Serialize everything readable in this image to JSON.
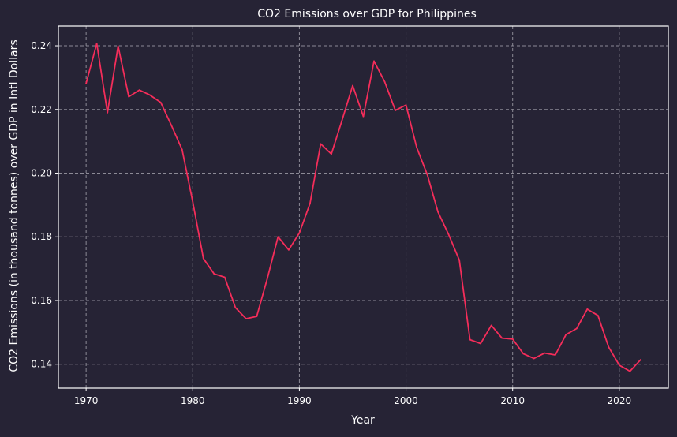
{
  "colors": {
    "background": "#262335",
    "plot_background": "#262335",
    "grid": "#8c8a96",
    "axes": "#ffffff",
    "text": "#ffffff",
    "line": "#f42d5a"
  },
  "chart_data": {
    "type": "line",
    "title": "CO2 Emissions over GDP for Philippines",
    "xlabel": "Year",
    "ylabel": "CO2 Emissions (in thousand tonnes) over GDP in Intl Dollars",
    "xlim": [
      1967.4,
      2024.6
    ],
    "ylim": [
      0.1325,
      0.2462
    ],
    "x_ticks": [
      1970,
      1980,
      1990,
      2000,
      2010,
      2020
    ],
    "y_ticks": [
      0.14,
      0.16,
      0.18,
      0.2,
      0.22,
      0.24
    ],
    "y_tick_labels": [
      "0.14",
      "0.16",
      "0.18",
      "0.20",
      "0.22",
      "0.24"
    ],
    "grid": true,
    "grid_style": "dashed",
    "legend": false,
    "series": [
      {
        "x": [
          1970,
          1971,
          1972,
          1973,
          1974,
          1975,
          1976,
          1977,
          1978,
          1979,
          1980,
          1981,
          1982,
          1983,
          1984,
          1985,
          1986,
          1987,
          1988,
          1989,
          1990,
          1991,
          1992,
          1993,
          1994,
          1995,
          1996,
          1997,
          1998,
          1999,
          2000,
          2001,
          2002,
          2003,
          2004,
          2005,
          2006,
          2007,
          2008,
          2009,
          2010,
          2011,
          2012,
          2013,
          2014,
          2015,
          2016,
          2017,
          2018,
          2019,
          2020,
          2021,
          2022
        ],
        "values": [
          0.2282,
          0.2407,
          0.219,
          0.2399,
          0.224,
          0.2261,
          0.2245,
          0.2222,
          0.215,
          0.2074,
          0.191,
          0.1732,
          0.1684,
          0.1673,
          0.1578,
          0.1543,
          0.155,
          0.167,
          0.18,
          0.1759,
          0.1812,
          0.1905,
          0.2092,
          0.206,
          0.2166,
          0.2275,
          0.2178,
          0.2352,
          0.2287,
          0.2197,
          0.2214,
          0.2081,
          0.1995,
          0.1878,
          0.1807,
          0.1727,
          0.1477,
          0.1465,
          0.1522,
          0.1482,
          0.1479,
          0.1433,
          0.1418,
          0.1435,
          0.1429,
          0.1493,
          0.1512,
          0.1573,
          0.1553,
          0.1454,
          0.1397,
          0.1378,
          0.1414
        ]
      }
    ]
  }
}
